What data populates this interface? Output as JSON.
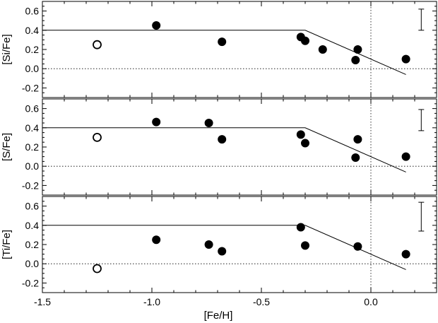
{
  "chart_data": [
    {
      "type": "scatter",
      "xlabel": "[Fe/H]",
      "ylabel": "[Si/Fe]",
      "xlim": [
        -1.5,
        0.3
      ],
      "ylim": [
        -0.3,
        0.7
      ],
      "xticks": [
        "-1.5",
        "-1.0",
        "-0.5",
        "0.0"
      ],
      "yticks": [
        "-0.2",
        "0.0",
        "0.2",
        "0.4",
        "0.6"
      ],
      "reference_lines": {
        "y": 0.0,
        "x": 0.0,
        "style": "dotted"
      },
      "model_line": [
        [
          -1.5,
          0.4
        ],
        [
          -0.3,
          0.4
        ],
        [
          0.16,
          -0.06
        ]
      ],
      "error_bar": {
        "x": 0.23,
        "low": 0.4,
        "high": 0.62
      },
      "series": [
        {
          "marker": "open-circle",
          "points": [
            [
              -1.25,
              0.25
            ]
          ]
        },
        {
          "marker": "filled-circle",
          "points": [
            [
              -0.98,
              0.45
            ],
            [
              -0.68,
              0.28
            ],
            [
              -0.32,
              0.33
            ],
            [
              -0.3,
              0.29
            ],
            [
              -0.22,
              0.2
            ],
            [
              -0.07,
              0.09
            ],
            [
              -0.06,
              0.2
            ],
            [
              0.16,
              0.1
            ]
          ]
        }
      ]
    },
    {
      "type": "scatter",
      "xlabel": "[Fe/H]",
      "ylabel": "[S/Fe]",
      "xlim": [
        -1.5,
        0.3
      ],
      "ylim": [
        -0.3,
        0.7
      ],
      "xticks": [
        "-1.5",
        "-1.0",
        "-0.5",
        "0.0"
      ],
      "yticks": [
        "-0.2",
        "0.0",
        "0.2",
        "0.4",
        "0.6"
      ],
      "reference_lines": {
        "y": 0.0,
        "x": 0.0,
        "style": "dotted"
      },
      "model_line": [
        [
          -1.5,
          0.4
        ],
        [
          -0.3,
          0.4
        ],
        [
          0.16,
          -0.06
        ]
      ],
      "error_bar": {
        "x": 0.23,
        "low": 0.37,
        "high": 0.59
      },
      "series": [
        {
          "marker": "open-circle",
          "points": [
            [
              -1.25,
              0.3
            ]
          ]
        },
        {
          "marker": "filled-circle",
          "points": [
            [
              -0.98,
              0.46
            ],
            [
              -0.74,
              0.45
            ],
            [
              -0.68,
              0.28
            ],
            [
              -0.32,
              0.33
            ],
            [
              -0.3,
              0.24
            ],
            [
              -0.07,
              0.09
            ],
            [
              -0.06,
              0.28
            ],
            [
              0.16,
              0.1
            ]
          ]
        }
      ]
    },
    {
      "type": "scatter",
      "xlabel": "[Fe/H]",
      "ylabel": "[Ti/Fe]",
      "xlim": [
        -1.5,
        0.3
      ],
      "ylim": [
        -0.3,
        0.7
      ],
      "xticks": [
        "-1.5",
        "-1.0",
        "-0.5",
        "0.0"
      ],
      "yticks": [
        "-0.2",
        "0.0",
        "0.2",
        "0.4",
        "0.6"
      ],
      "reference_lines": {
        "y": 0.0,
        "x": 0.0,
        "style": "dotted"
      },
      "model_line": [
        [
          -1.5,
          0.4
        ],
        [
          -0.3,
          0.4
        ],
        [
          0.16,
          -0.06
        ]
      ],
      "error_bar": {
        "x": 0.23,
        "low": 0.34,
        "high": 0.64
      },
      "series": [
        {
          "marker": "open-circle",
          "points": [
            [
              -1.25,
              -0.05
            ]
          ]
        },
        {
          "marker": "filled-circle",
          "points": [
            [
              -0.98,
              0.25
            ],
            [
              -0.74,
              0.2
            ],
            [
              -0.68,
              0.13
            ],
            [
              -0.32,
              0.38
            ],
            [
              -0.3,
              0.19
            ],
            [
              -0.06,
              0.18
            ],
            [
              0.16,
              0.1
            ]
          ]
        }
      ]
    }
  ]
}
